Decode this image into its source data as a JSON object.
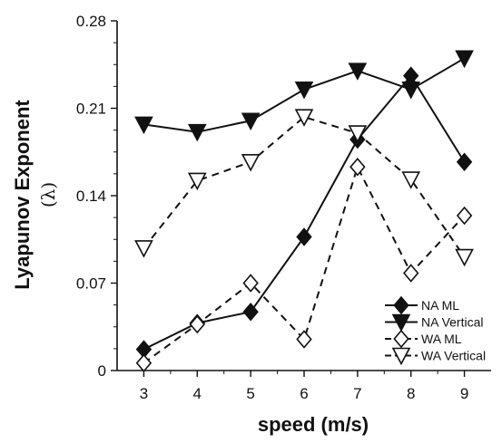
{
  "chart_data": {
    "type": "line",
    "xlabel": "speed (m/s)",
    "ylabel": "Lyapunov Exponent",
    "ylabel_sub": "(λ)",
    "x": [
      3,
      4,
      5,
      6,
      7,
      8,
      9
    ],
    "xlim": [
      2.5,
      9.5
    ],
    "ylim": [
      0,
      0.28
    ],
    "y_ticks": [
      "0",
      "0.07",
      "0.14",
      "0.21",
      "0.28"
    ],
    "x_ticks": [
      "3",
      "4",
      "5",
      "6",
      "7",
      "8",
      "9"
    ],
    "legend_position": "bottom-right",
    "grid": false,
    "series": [
      {
        "name": "NA ML",
        "marker": "diamond-filled",
        "line": "solid",
        "values": [
          0.017,
          0.038,
          0.047,
          0.107,
          0.185,
          0.236,
          0.167
        ]
      },
      {
        "name": "NA Vertical",
        "marker": "triangle-down-filled",
        "line": "solid",
        "values": [
          0.197,
          0.191,
          0.2,
          0.225,
          0.24,
          0.225,
          0.25
        ]
      },
      {
        "name": "WA ML",
        "marker": "diamond-open",
        "line": "dashed",
        "values": [
          0.006,
          0.037,
          0.07,
          0.025,
          0.163,
          0.078,
          0.124
        ]
      },
      {
        "name": "WA Vertical",
        "marker": "triangle-down-open",
        "line": "dashed",
        "values": [
          0.098,
          0.152,
          0.167,
          0.203,
          0.19,
          0.153,
          0.091
        ]
      }
    ]
  }
}
